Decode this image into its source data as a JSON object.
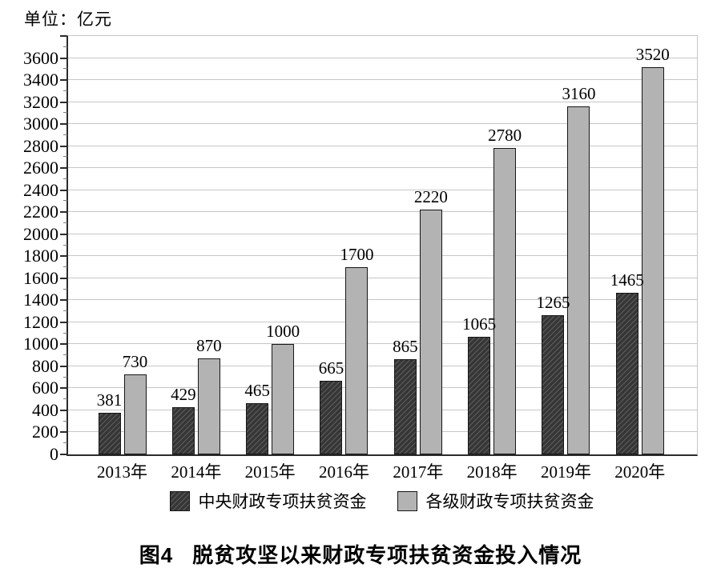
{
  "figure": {
    "unit_label": "单位：亿元",
    "caption_prefix": "图4",
    "caption_text": "脱贫攻坚以来财政专项扶贫资金投入情况"
  },
  "chart_data": {
    "type": "bar",
    "title": "图4 脱贫攻坚以来财政专项扶贫资金投入情况",
    "unit": "亿元",
    "categories": [
      "2013年",
      "2014年",
      "2015年",
      "2016年",
      "2017年",
      "2018年",
      "2019年",
      "2020年"
    ],
    "series": [
      {
        "name": "中央财政专项扶贫资金",
        "style": "dark_hatched",
        "color": "#363636",
        "values": [
          381,
          429,
          465,
          665,
          865,
          1065,
          1265,
          1465
        ]
      },
      {
        "name": "各级财政专项扶贫资金",
        "style": "light_solid",
        "color": "#b3b3b3",
        "values": [
          730,
          870,
          1000,
          1700,
          2220,
          2780,
          3160,
          3520
        ]
      }
    ],
    "ylim": [
      0,
      3800
    ],
    "ytick_step": 200,
    "ytick_label_max": 3600,
    "minor_tick_step": 100,
    "grid": "horizontal",
    "bar_value_labels": true,
    "legend_position": "bottom",
    "colors": {
      "grid": "#c6c6c6",
      "axis": "#2b2b2b",
      "bar_border": "#161616",
      "hatch_line": "#5e5e5e",
      "text": "#000000"
    }
  }
}
